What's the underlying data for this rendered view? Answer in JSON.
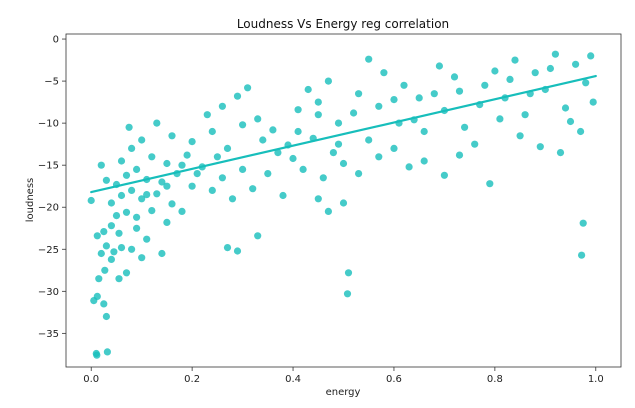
{
  "chart_data": {
    "type": "scatter",
    "title": "Loudness Vs Energy reg correlation",
    "xlabel": "energy",
    "ylabel": "loudness",
    "xlim": [
      -0.05,
      1.05
    ],
    "ylim": [
      -39,
      0.6
    ],
    "xticks": [
      0.0,
      0.2,
      0.4,
      0.6,
      0.8,
      1.0
    ],
    "xtick_labels": [
      "0.0",
      "0.2",
      "0.4",
      "0.6",
      "0.8",
      "1.0"
    ],
    "yticks": [
      0,
      -5,
      -10,
      -15,
      -20,
      -25,
      -30,
      -35
    ],
    "ytick_labels": [
      "0",
      "−5",
      "−10",
      "−15",
      "−20",
      "−25",
      "−30",
      "−35"
    ],
    "grid": false,
    "legend": "none",
    "color": "#17bebb",
    "series": [
      {
        "points": [
          [
            0.01,
            -37.4
          ],
          [
            0.011,
            -37.6
          ],
          [
            0.032,
            -37.2
          ],
          [
            0.03,
            -33.0
          ],
          [
            0.005,
            -31.1
          ],
          [
            0.012,
            -30.6
          ],
          [
            0.025,
            -31.5
          ],
          [
            0.015,
            -28.5
          ],
          [
            0.027,
            -27.5
          ],
          [
            0.04,
            -26.2
          ],
          [
            0.055,
            -28.5
          ],
          [
            0.07,
            -27.8
          ],
          [
            0.02,
            -25.5
          ],
          [
            0.03,
            -24.6
          ],
          [
            0.045,
            -25.3
          ],
          [
            0.06,
            -24.8
          ],
          [
            0.08,
            -25.0
          ],
          [
            0.1,
            -26.0
          ],
          [
            0.012,
            -23.4
          ],
          [
            0.025,
            -22.9
          ],
          [
            0.04,
            -22.2
          ],
          [
            0.055,
            -23.1
          ],
          [
            0.09,
            -22.5
          ],
          [
            0.11,
            -23.8
          ],
          [
            0.14,
            -25.5
          ],
          [
            0.05,
            -21.0
          ],
          [
            0.07,
            -20.6
          ],
          [
            0.09,
            -21.2
          ],
          [
            0.12,
            -20.4
          ],
          [
            0.15,
            -21.8
          ],
          [
            0.0,
            -19.2
          ],
          [
            0.04,
            -19.5
          ],
          [
            0.06,
            -18.6
          ],
          [
            0.08,
            -18.0
          ],
          [
            0.1,
            -19.0
          ],
          [
            0.13,
            -18.4
          ],
          [
            0.16,
            -19.6
          ],
          [
            0.18,
            -20.5
          ],
          [
            0.03,
            -16.8
          ],
          [
            0.05,
            -17.3
          ],
          [
            0.07,
            -16.2
          ],
          [
            0.09,
            -15.5
          ],
          [
            0.11,
            -16.7
          ],
          [
            0.14,
            -17.0
          ],
          [
            0.17,
            -16.0
          ],
          [
            0.2,
            -17.5
          ],
          [
            0.02,
            -15.0
          ],
          [
            0.06,
            -14.5
          ],
          [
            0.08,
            -13.0
          ],
          [
            0.1,
            -12.0
          ],
          [
            0.075,
            -10.5
          ],
          [
            0.12,
            -14.0
          ],
          [
            0.15,
            -14.8
          ],
          [
            0.19,
            -13.8
          ],
          [
            0.22,
            -15.2
          ],
          [
            0.13,
            -10.0
          ],
          [
            0.16,
            -11.5
          ],
          [
            0.2,
            -12.2
          ],
          [
            0.24,
            -11.0
          ],
          [
            0.27,
            -13.0
          ],
          [
            0.24,
            -18.0
          ],
          [
            0.26,
            -16.5
          ],
          [
            0.28,
            -19.0
          ],
          [
            0.3,
            -15.5
          ],
          [
            0.32,
            -17.8
          ],
          [
            0.35,
            -16.0
          ],
          [
            0.38,
            -18.6
          ],
          [
            0.27,
            -24.8
          ],
          [
            0.29,
            -25.2
          ],
          [
            0.33,
            -23.4
          ],
          [
            0.23,
            -9.0
          ],
          [
            0.26,
            -8.0
          ],
          [
            0.29,
            -6.8
          ],
          [
            0.31,
            -5.8
          ],
          [
            0.33,
            -9.5
          ],
          [
            0.36,
            -10.8
          ],
          [
            0.39,
            -12.6
          ],
          [
            0.41,
            -8.4
          ],
          [
            0.43,
            -6.0
          ],
          [
            0.45,
            -7.5
          ],
          [
            0.47,
            -5.0
          ],
          [
            0.49,
            -10.0
          ],
          [
            0.52,
            -8.8
          ],
          [
            0.55,
            -12.0
          ],
          [
            0.4,
            -14.2
          ],
          [
            0.42,
            -15.5
          ],
          [
            0.44,
            -11.8
          ],
          [
            0.46,
            -16.5
          ],
          [
            0.48,
            -13.5
          ],
          [
            0.5,
            -14.8
          ],
          [
            0.53,
            -16.0
          ],
          [
            0.57,
            -14.0
          ],
          [
            0.45,
            -19.0
          ],
          [
            0.47,
            -20.5
          ],
          [
            0.5,
            -19.5
          ],
          [
            0.51,
            -27.8
          ],
          [
            0.508,
            -30.3
          ],
          [
            0.55,
            -2.4
          ],
          [
            0.58,
            -4.0
          ],
          [
            0.6,
            -7.2
          ],
          [
            0.62,
            -5.5
          ],
          [
            0.64,
            -9.6
          ],
          [
            0.66,
            -11.0
          ],
          [
            0.68,
            -6.5
          ],
          [
            0.7,
            -8.5
          ],
          [
            0.72,
            -4.5
          ],
          [
            0.74,
            -10.5
          ],
          [
            0.76,
            -12.5
          ],
          [
            0.6,
            -13.0
          ],
          [
            0.63,
            -15.2
          ],
          [
            0.66,
            -14.5
          ],
          [
            0.7,
            -16.2
          ],
          [
            0.73,
            -13.8
          ],
          [
            0.79,
            -17.2
          ],
          [
            0.78,
            -5.5
          ],
          [
            0.8,
            -3.8
          ],
          [
            0.82,
            -7.0
          ],
          [
            0.84,
            -2.5
          ],
          [
            0.86,
            -9.0
          ],
          [
            0.88,
            -4.0
          ],
          [
            0.9,
            -6.0
          ],
          [
            0.92,
            -1.8
          ],
          [
            0.94,
            -8.2
          ],
          [
            0.96,
            -3.0
          ],
          [
            0.98,
            -5.2
          ],
          [
            0.99,
            -2.0
          ],
          [
            0.995,
            -7.5
          ],
          [
            0.85,
            -11.5
          ],
          [
            0.89,
            -12.8
          ],
          [
            0.93,
            -13.5
          ],
          [
            0.97,
            -11.0
          ],
          [
            0.95,
            -9.8
          ],
          [
            0.975,
            -21.9
          ],
          [
            0.972,
            -25.7
          ],
          [
            0.91,
            -3.5
          ],
          [
            0.87,
            -6.5
          ],
          [
            0.83,
            -4.8
          ],
          [
            0.81,
            -9.5
          ],
          [
            0.77,
            -7.8
          ],
          [
            0.73,
            -6.2
          ],
          [
            0.69,
            -3.2
          ],
          [
            0.65,
            -7.0
          ],
          [
            0.61,
            -10.0
          ],
          [
            0.57,
            -8.0
          ],
          [
            0.53,
            -6.5
          ],
          [
            0.49,
            -12.5
          ],
          [
            0.45,
            -9.0
          ],
          [
            0.41,
            -11.0
          ],
          [
            0.37,
            -13.5
          ],
          [
            0.34,
            -12.0
          ],
          [
            0.3,
            -10.2
          ],
          [
            0.25,
            -14.0
          ],
          [
            0.21,
            -16.0
          ],
          [
            0.18,
            -15.0
          ],
          [
            0.15,
            -17.5
          ],
          [
            0.11,
            -18.5
          ]
        ]
      }
    ],
    "regression_line": {
      "x": [
        0.0,
        1.0
      ],
      "y": [
        -18.2,
        -4.4
      ]
    }
  }
}
